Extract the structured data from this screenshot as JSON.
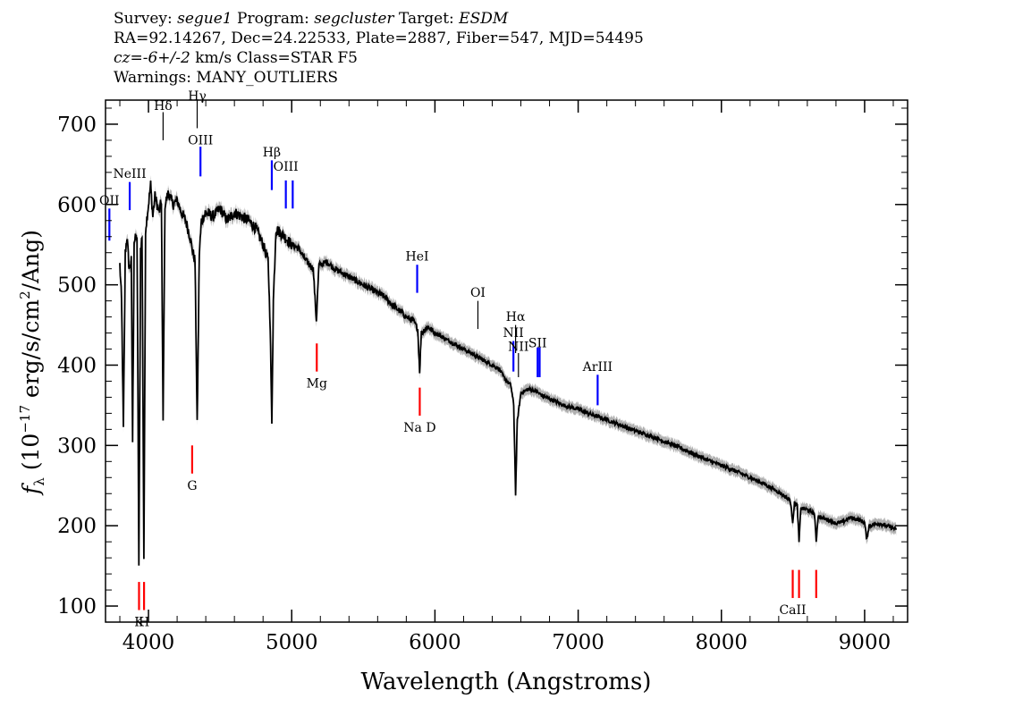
{
  "header": {
    "line1": {
      "survey_label": "Survey: ",
      "survey": "segue1",
      "program_label": " Program: ",
      "program": "segcluster",
      "target_label": " Target: ",
      "target": "ESDM"
    },
    "line2": "RA=92.14267, Dec=24.22533, Plate=2887, Fiber=547, MJD=54495",
    "line3": {
      "cz_label": "cz",
      "cz_value": "=-6+/-2",
      "rest": " km/s Class=STAR F5"
    },
    "line4": "Warnings: MANY_OUTLIERS"
  },
  "chart_data": {
    "type": "line",
    "xlabel": "Wavelength (Angstroms)",
    "ylabel": "f_λ (10^-17 erg/s/cm^2/Ang)",
    "ylabel_parts": {
      "f": "f",
      "sub": "λ",
      "pre": " (10",
      "exp1": "−17",
      "mid": " erg/s/cm",
      "exp2": "2",
      "post": "/Ang)"
    },
    "xlim": [
      3700,
      9300
    ],
    "ylim": [
      80,
      730
    ],
    "xticks": [
      4000,
      5000,
      6000,
      7000,
      8000,
      9000
    ],
    "yticks": [
      100,
      200,
      300,
      400,
      500,
      600,
      700
    ],
    "series": [
      {
        "points": [
          [
            3800,
            525
          ],
          [
            3812,
            480
          ],
          [
            3825,
            320
          ],
          [
            3838,
            540
          ],
          [
            3850,
            560
          ],
          [
            3865,
            520
          ],
          [
            3880,
            530
          ],
          [
            3889,
            305
          ],
          [
            3900,
            555
          ],
          [
            3920,
            560
          ],
          [
            3933,
            150
          ],
          [
            3945,
            545
          ],
          [
            3955,
            560
          ],
          [
            3968,
            160
          ],
          [
            3980,
            570
          ],
          [
            4000,
            600
          ],
          [
            4015,
            625
          ],
          [
            4030,
            585
          ],
          [
            4045,
            610
          ],
          [
            4060,
            600
          ],
          [
            4075,
            590
          ],
          [
            4090,
            605
          ],
          [
            4102,
            330
          ],
          [
            4115,
            600
          ],
          [
            4140,
            615
          ],
          [
            4170,
            600
          ],
          [
            4200,
            605
          ],
          [
            4230,
            590
          ],
          [
            4260,
            580
          ],
          [
            4290,
            560
          ],
          [
            4310,
            540
          ],
          [
            4325,
            530
          ],
          [
            4340,
            325
          ],
          [
            4355,
            540
          ],
          [
            4370,
            580
          ],
          [
            4400,
            590
          ],
          [
            4450,
            585
          ],
          [
            4500,
            595
          ],
          [
            4550,
            580
          ],
          [
            4600,
            590
          ],
          [
            4650,
            585
          ],
          [
            4700,
            580
          ],
          [
            4750,
            570
          ],
          [
            4800,
            550
          ],
          [
            4835,
            530
          ],
          [
            4850,
            450
          ],
          [
            4861,
            325
          ],
          [
            4872,
            480
          ],
          [
            4890,
            570
          ],
          [
            4920,
            565
          ],
          [
            4950,
            560
          ],
          [
            5000,
            550
          ],
          [
            5050,
            545
          ],
          [
            5100,
            530
          ],
          [
            5150,
            520
          ],
          [
            5172,
            455
          ],
          [
            5190,
            525
          ],
          [
            5250,
            528
          ],
          [
            5300,
            520
          ],
          [
            5350,
            515
          ],
          [
            5400,
            510
          ],
          [
            5450,
            505
          ],
          [
            5500,
            500
          ],
          [
            5550,
            495
          ],
          [
            5600,
            490
          ],
          [
            5650,
            485
          ],
          [
            5700,
            475
          ],
          [
            5750,
            468
          ],
          [
            5800,
            460
          ],
          [
            5850,
            455
          ],
          [
            5880,
            445
          ],
          [
            5893,
            392
          ],
          [
            5905,
            440
          ],
          [
            5950,
            448
          ],
          [
            6000,
            440
          ],
          [
            6050,
            435
          ],
          [
            6100,
            430
          ],
          [
            6150,
            425
          ],
          [
            6200,
            420
          ],
          [
            6250,
            415
          ],
          [
            6300,
            410
          ],
          [
            6350,
            405
          ],
          [
            6400,
            400
          ],
          [
            6450,
            395
          ],
          [
            6480,
            385
          ],
          [
            6500,
            380
          ],
          [
            6530,
            375
          ],
          [
            6550,
            350
          ],
          [
            6563,
            240
          ],
          [
            6575,
            330
          ],
          [
            6600,
            365
          ],
          [
            6650,
            370
          ],
          [
            6700,
            368
          ],
          [
            6750,
            362
          ],
          [
            6800,
            358
          ],
          [
            6900,
            350
          ],
          [
            7000,
            345
          ],
          [
            7100,
            338
          ],
          [
            7200,
            332
          ],
          [
            7300,
            325
          ],
          [
            7400,
            318
          ],
          [
            7500,
            312
          ],
          [
            7600,
            305
          ],
          [
            7700,
            298
          ],
          [
            7800,
            290
          ],
          [
            7900,
            282
          ],
          [
            8000,
            275
          ],
          [
            8100,
            268
          ],
          [
            8200,
            260
          ],
          [
            8300,
            252
          ],
          [
            8400,
            242
          ],
          [
            8480,
            232
          ],
          [
            8498,
            205
          ],
          [
            8510,
            228
          ],
          [
            8530,
            225
          ],
          [
            8542,
            180
          ],
          [
            8555,
            222
          ],
          [
            8600,
            220
          ],
          [
            8650,
            215
          ],
          [
            8662,
            180
          ],
          [
            8675,
            212
          ],
          [
            8700,
            210
          ],
          [
            8750,
            207
          ],
          [
            8800,
            203
          ],
          [
            8850,
            205
          ],
          [
            8900,
            210
          ],
          [
            8950,
            208
          ],
          [
            9000,
            204
          ],
          [
            9015,
            182
          ],
          [
            9030,
            200
          ],
          [
            9100,
            203
          ],
          [
            9150,
            200
          ],
          [
            9200,
            197
          ],
          [
            9220,
            195
          ]
        ]
      }
    ],
    "emission_lines": [
      {
        "label": "OII",
        "x": 3727,
        "y0": 555,
        "y1": 595,
        "label_y": 600
      },
      {
        "label": "NeIII",
        "x": 3869,
        "y0": 593,
        "y1": 628,
        "label_y": 633
      },
      {
        "label": "OIII",
        "x": 4363,
        "y0": 635,
        "y1": 672,
        "label_y": 675
      },
      {
        "label": "Hβ",
        "x": 4861,
        "y0": 618,
        "y1": 655,
        "label_y": 660
      },
      {
        "label": "OIII",
        "x": 4959,
        "y0": 595,
        "y1": 630,
        "label_y": 642
      },
      {
        "label": "OIII",
        "x": 5007,
        "y0": 595,
        "y1": 630
      },
      {
        "label": "HeI",
        "x": 5876,
        "y0": 490,
        "y1": 525,
        "label_y": 530
      },
      {
        "label": "NII",
        "x": 6548,
        "y0": 392,
        "y1": 430,
        "label_y": 435
      },
      {
        "label": "SII",
        "x": 6717,
        "y0": 385,
        "y1": 422,
        "label_y": 422
      },
      {
        "label": "SII",
        "x": 6731,
        "y0": 385,
        "y1": 422
      },
      {
        "label": "ArIII",
        "x": 7136,
        "y0": 350,
        "y1": 388,
        "label_y": 393
      }
    ],
    "balmer_lines": [
      {
        "label": "Hδ",
        "x": 4102,
        "y0": 680,
        "y1": 715,
        "label_y": 718
      },
      {
        "label": "Hγ",
        "x": 4340,
        "y0": 695,
        "y1": 730,
        "label_y": 730
      },
      {
        "label": "OI",
        "x": 6300,
        "y0": 445,
        "y1": 480,
        "label_y": 485
      },
      {
        "label": "Hα",
        "x": 6563,
        "y0": 415,
        "y1": 450,
        "label_y": 455
      },
      {
        "label": "NII",
        "x": 6583,
        "y0": 385,
        "y1": 415,
        "label_y": 418
      }
    ],
    "absorption_lines": [
      {
        "label": "K",
        "x": 3934,
        "y0": 95,
        "y1": 130,
        "label_y": 75
      },
      {
        "label": "H",
        "x": 3969,
        "y0": 95,
        "y1": 130,
        "label_y": 75
      },
      {
        "label": "G",
        "x": 4305,
        "y0": 265,
        "y1": 300,
        "label_y": 245
      },
      {
        "label": "Mg",
        "x": 5175,
        "y0": 392,
        "y1": 427,
        "label_y": 372
      },
      {
        "label": "Na D",
        "x": 5894,
        "y0": 337,
        "y1": 372,
        "label_y": 317
      },
      {
        "label": "CaII",
        "x": 8498,
        "y0": 110,
        "y1": 145,
        "label_y": 90
      },
      {
        "label": "",
        "x": 8542,
        "y0": 110,
        "y1": 145
      },
      {
        "label": "",
        "x": 8662,
        "y0": 110,
        "y1": 145
      }
    ],
    "colors": {
      "spectrum": "#000000",
      "noise_band": "#b0b0b0",
      "emission": "#0000ff",
      "balmer": "#000000",
      "absorption": "#ff0000"
    }
  }
}
